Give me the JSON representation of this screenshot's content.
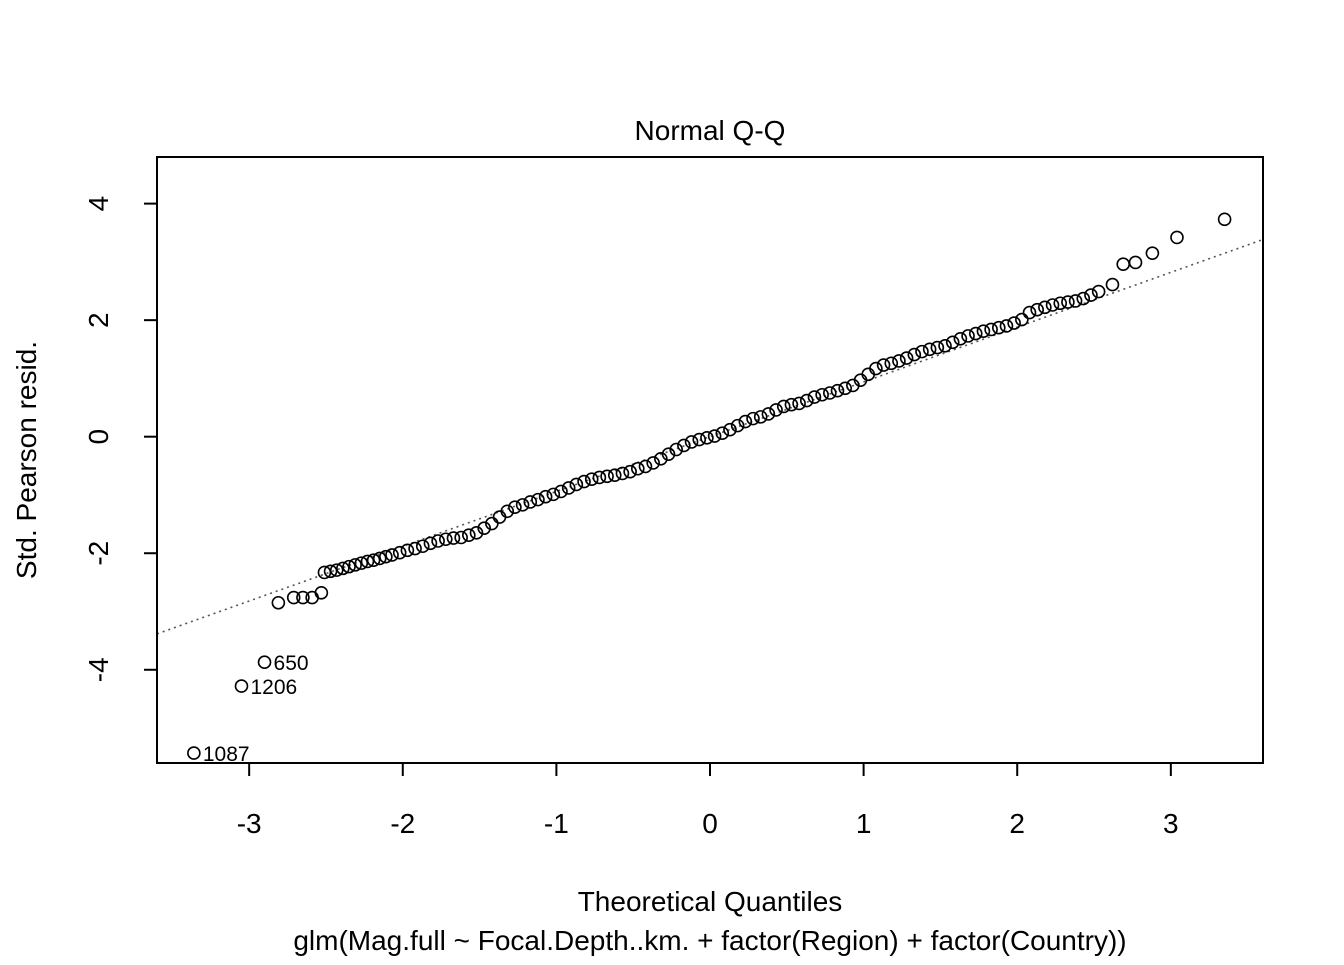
{
  "chart_data": {
    "type": "scatter",
    "title": "Normal Q-Q",
    "xlabel": "Theoretical Quantiles",
    "ylabel": "Std. Pearson resid.",
    "subtitle": "glm(Mag.full ~ Focal.Depth..km. + factor(Region) + factor(Country))",
    "xlim": [
      -3.6,
      3.6
    ],
    "ylim": [
      -5.6,
      4.8
    ],
    "x_ticks": [
      -3,
      -2,
      -1,
      0,
      1,
      2,
      3
    ],
    "y_ticks": [
      -4,
      -2,
      0,
      2,
      4
    ],
    "grid": false,
    "legend": "none",
    "reference_line": {
      "style": "dotted",
      "slope": 0.94,
      "intercept": 0.0
    },
    "labeled_points": [
      {
        "label": "650",
        "x": -2.9,
        "y": -3.87
      },
      {
        "label": "1206",
        "x": -3.05,
        "y": -4.28
      },
      {
        "label": "1087",
        "x": -3.36,
        "y": -5.43
      }
    ],
    "series": [
      {
        "points": [
          [
            -2.81,
            -2.85
          ],
          [
            -2.71,
            -2.76
          ],
          [
            -2.65,
            -2.76
          ],
          [
            -2.59,
            -2.76
          ],
          [
            -2.53,
            -2.68
          ],
          [
            -2.51,
            -2.33
          ],
          [
            -2.47,
            -2.31
          ],
          [
            -2.43,
            -2.29
          ],
          [
            -2.39,
            -2.26
          ],
          [
            -2.35,
            -2.23
          ],
          [
            -2.31,
            -2.2
          ],
          [
            -2.27,
            -2.17
          ],
          [
            -2.23,
            -2.14
          ],
          [
            -2.19,
            -2.12
          ],
          [
            -2.15,
            -2.09
          ],
          [
            -2.11,
            -2.06
          ],
          [
            -2.07,
            -2.03
          ],
          [
            -2.02,
            -1.99
          ],
          [
            -1.97,
            -1.95
          ],
          [
            -1.92,
            -1.92
          ],
          [
            -1.87,
            -1.88
          ],
          [
            -1.82,
            -1.83
          ],
          [
            -1.77,
            -1.79
          ],
          [
            -1.72,
            -1.76
          ],
          [
            -1.67,
            -1.74
          ],
          [
            -1.62,
            -1.73
          ],
          [
            -1.57,
            -1.69
          ],
          [
            -1.52,
            -1.65
          ],
          [
            -1.47,
            -1.57
          ],
          [
            -1.42,
            -1.49
          ],
          [
            -1.37,
            -1.38
          ],
          [
            -1.32,
            -1.28
          ],
          [
            -1.27,
            -1.21
          ],
          [
            -1.22,
            -1.17
          ],
          [
            -1.17,
            -1.12
          ],
          [
            -1.12,
            -1.08
          ],
          [
            -1.07,
            -1.03
          ],
          [
            -1.02,
            -0.99
          ],
          [
            -0.97,
            -0.94
          ],
          [
            -0.92,
            -0.88
          ],
          [
            -0.87,
            -0.82
          ],
          [
            -0.82,
            -0.77
          ],
          [
            -0.77,
            -0.73
          ],
          [
            -0.72,
            -0.7
          ],
          [
            -0.67,
            -0.68
          ],
          [
            -0.62,
            -0.66
          ],
          [
            -0.57,
            -0.63
          ],
          [
            -0.52,
            -0.6
          ],
          [
            -0.47,
            -0.55
          ],
          [
            -0.42,
            -0.51
          ],
          [
            -0.37,
            -0.45
          ],
          [
            -0.32,
            -0.38
          ],
          [
            -0.27,
            -0.3
          ],
          [
            -0.22,
            -0.22
          ],
          [
            -0.17,
            -0.15
          ],
          [
            -0.12,
            -0.09
          ],
          [
            -0.07,
            -0.05
          ],
          [
            -0.02,
            -0.02
          ],
          [
            0.03,
            0.01
          ],
          [
            0.08,
            0.06
          ],
          [
            0.13,
            0.12
          ],
          [
            0.18,
            0.19
          ],
          [
            0.23,
            0.26
          ],
          [
            0.28,
            0.31
          ],
          [
            0.33,
            0.34
          ],
          [
            0.38,
            0.39
          ],
          [
            0.43,
            0.46
          ],
          [
            0.48,
            0.52
          ],
          [
            0.53,
            0.55
          ],
          [
            0.58,
            0.57
          ],
          [
            0.63,
            0.62
          ],
          [
            0.68,
            0.68
          ],
          [
            0.73,
            0.72
          ],
          [
            0.78,
            0.75
          ],
          [
            0.83,
            0.79
          ],
          [
            0.88,
            0.83
          ],
          [
            0.93,
            0.88
          ],
          [
            0.98,
            0.97
          ],
          [
            1.03,
            1.07
          ],
          [
            1.08,
            1.17
          ],
          [
            1.13,
            1.23
          ],
          [
            1.18,
            1.26
          ],
          [
            1.23,
            1.3
          ],
          [
            1.28,
            1.35
          ],
          [
            1.33,
            1.41
          ],
          [
            1.38,
            1.46
          ],
          [
            1.43,
            1.5
          ],
          [
            1.48,
            1.53
          ],
          [
            1.53,
            1.56
          ],
          [
            1.58,
            1.62
          ],
          [
            1.63,
            1.68
          ],
          [
            1.68,
            1.73
          ],
          [
            1.73,
            1.77
          ],
          [
            1.78,
            1.81
          ],
          [
            1.83,
            1.84
          ],
          [
            1.88,
            1.87
          ],
          [
            1.93,
            1.9
          ],
          [
            1.98,
            1.95
          ],
          [
            2.03,
            2.01
          ],
          [
            2.08,
            2.13
          ],
          [
            2.13,
            2.18
          ],
          [
            2.18,
            2.22
          ],
          [
            2.23,
            2.26
          ],
          [
            2.28,
            2.29
          ],
          [
            2.33,
            2.31
          ],
          [
            2.38,
            2.33
          ],
          [
            2.43,
            2.37
          ],
          [
            2.48,
            2.43
          ],
          [
            2.53,
            2.49
          ],
          [
            2.62,
            2.61
          ],
          [
            2.69,
            2.96
          ],
          [
            2.77,
            2.99
          ],
          [
            2.88,
            3.15
          ],
          [
            3.04,
            3.42
          ],
          [
            3.35,
            3.73
          ],
          [
            -2.9,
            -3.87
          ],
          [
            -3.05,
            -4.28
          ],
          [
            -3.36,
            -5.43
          ]
        ]
      }
    ]
  }
}
